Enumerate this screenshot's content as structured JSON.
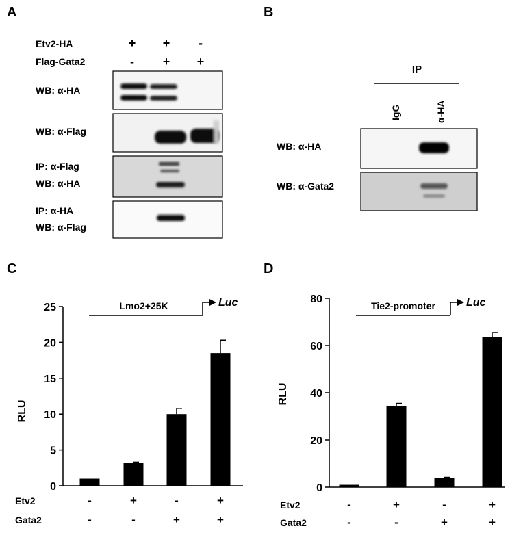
{
  "colors": {
    "bar": "#000000",
    "text": "#000000",
    "blot_bg": "#f4f4f4"
  },
  "panels": {
    "a": {
      "letter": "A",
      "conditions": [
        {
          "label": "Etv2-HA",
          "values": [
            "+",
            "+",
            "-"
          ]
        },
        {
          "label": "Flag-Gata2",
          "values": [
            "-",
            "+",
            "+"
          ]
        }
      ],
      "blots": [
        {
          "lines": [
            "WB: α-HA"
          ]
        },
        {
          "lines": [
            "WB: α-Flag"
          ]
        },
        {
          "lines": [
            "IP: α-Flag",
            "WB: α-HA"
          ]
        },
        {
          "lines": [
            "IP: α-HA",
            "WB: α-Flag"
          ]
        }
      ]
    },
    "b": {
      "letter": "B",
      "ip_label": "IP",
      "lanes": [
        "IgG",
        "α-HA"
      ],
      "blots": [
        {
          "lines": [
            "WB: α-HA"
          ]
        },
        {
          "lines": [
            "WB: α-Gata2"
          ]
        }
      ]
    },
    "c": {
      "letter": "C",
      "construct": "Lmo2+25K",
      "reporter": "Luc"
    },
    "d": {
      "letter": "D",
      "construct": "Tie2-promoter",
      "reporter": "Luc"
    }
  },
  "chart_data": [
    {
      "panel": "C",
      "type": "bar",
      "categories": [
        "1",
        "2",
        "3",
        "4"
      ],
      "values": [
        1.0,
        3.2,
        10.0,
        18.5
      ],
      "errors": [
        0.0,
        0.1,
        0.8,
        1.8
      ],
      "ylabel": "RLU",
      "ylim": [
        0,
        25
      ],
      "yticks": [
        0,
        5,
        10,
        15,
        20,
        25
      ],
      "conditions": [
        {
          "label": "Etv2",
          "values": [
            "-",
            "+",
            "-",
            "+"
          ]
        },
        {
          "label": "Gata2",
          "values": [
            "-",
            "-",
            "+",
            "+"
          ]
        }
      ],
      "grid": false
    },
    {
      "panel": "D",
      "type": "bar",
      "categories": [
        "1",
        "2",
        "3",
        "4"
      ],
      "values": [
        1.0,
        34.5,
        3.8,
        63.5
      ],
      "errors": [
        0.0,
        1.0,
        0.4,
        2.0
      ],
      "ylabel": "RLU",
      "ylim": [
        0,
        80
      ],
      "yticks": [
        0,
        20,
        40,
        60,
        80
      ],
      "conditions": [
        {
          "label": "Etv2",
          "values": [
            "-",
            "+",
            "-",
            "+"
          ]
        },
        {
          "label": "Gata2",
          "values": [
            "-",
            "-",
            "+",
            "+"
          ]
        }
      ],
      "grid": false
    }
  ]
}
